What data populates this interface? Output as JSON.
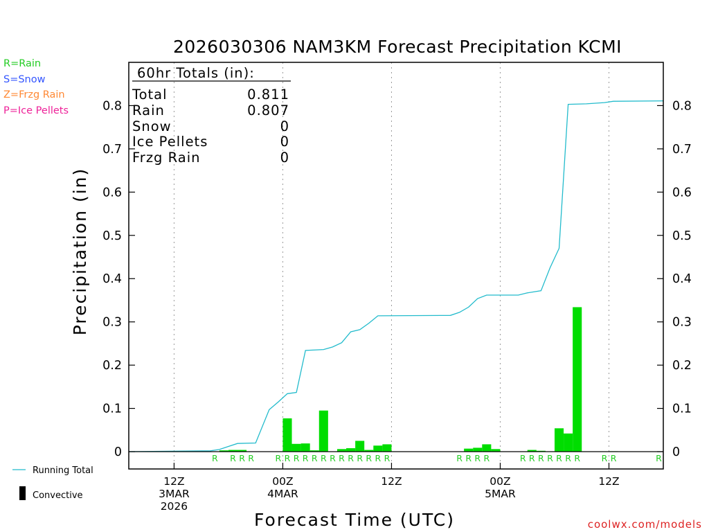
{
  "title": "2026030306 NAM3KM Forecast Precipitation KCMI",
  "legend_types": [
    {
      "text": "R=Rain",
      "color": "#22cc22"
    },
    {
      "text": "S=Snow",
      "color": "#3355ff"
    },
    {
      "text": "Z=Frzg Rain",
      "color": "#ff8833"
    },
    {
      "text": "P=Ice Pellets",
      "color": "#ee2299"
    }
  ],
  "totals_box": {
    "header": "60hr Totals (in):",
    "rows": [
      {
        "label": "Total",
        "value": "0.811"
      },
      {
        "label": "Rain",
        "value": "0.807"
      },
      {
        "label": "Snow",
        "value": "0"
      },
      {
        "label": "Ice Pellets",
        "value": "0"
      },
      {
        "label": "Frzg Rain",
        "value": "0"
      }
    ]
  },
  "bottom_legend": {
    "running_total": "Running Total",
    "convective": "Convective"
  },
  "credit": "coolwx.com/models",
  "chart_data": {
    "type": "bar",
    "title": "2026030306 NAM3KM Forecast Precipitation KCMI",
    "xlabel": "Forecast Time (UTC)",
    "ylabel": "Precipitation (in)",
    "ylim": [
      -0.04,
      0.9
    ],
    "yticks": [
      "0",
      "0.1",
      "0.2",
      "0.3",
      "0.4",
      "0.5",
      "0.6",
      "0.7",
      "0.8"
    ],
    "xrange_hours": [
      7,
      66
    ],
    "grid": "vertical dotted at 12-hour marks",
    "x_ticks": [
      {
        "hour": 12,
        "lines": [
          "12Z",
          "3MAR",
          "2026"
        ]
      },
      {
        "hour": 24,
        "lines": [
          "00Z",
          "4MAR"
        ]
      },
      {
        "hour": 36,
        "lines": [
          "12Z"
        ]
      },
      {
        "hour": 48,
        "lines": [
          "00Z",
          "5MAR"
        ]
      },
      {
        "hour": 60,
        "lines": [
          "12Z"
        ]
      }
    ],
    "series": [
      {
        "kind": "bar",
        "color": "#00dd00",
        "bars": [
          {
            "hour": 17,
            "value": 0.003
          },
          {
            "hour": 18,
            "value": 0.004
          },
          {
            "hour": 19,
            "value": 0.004
          },
          {
            "hour": 24,
            "value": 0.077
          },
          {
            "hour": 25,
            "value": 0.018
          },
          {
            "hour": 26,
            "value": 0.019
          },
          {
            "hour": 27,
            "value": 0.003
          },
          {
            "hour": 28,
            "value": 0.095
          },
          {
            "hour": 30,
            "value": 0.006
          },
          {
            "hour": 31,
            "value": 0.008
          },
          {
            "hour": 32,
            "value": 0.025
          },
          {
            "hour": 33,
            "value": 0.004
          },
          {
            "hour": 34,
            "value": 0.014
          },
          {
            "hour": 35,
            "value": 0.017
          },
          {
            "hour": 44,
            "value": 0.007
          },
          {
            "hour": 45,
            "value": 0.009
          },
          {
            "hour": 46,
            "value": 0.017
          },
          {
            "hour": 47,
            "value": 0.006
          },
          {
            "hour": 51,
            "value": 0.004
          },
          {
            "hour": 52,
            "value": 0.002
          },
          {
            "hour": 54,
            "value": 0.054
          },
          {
            "hour": 55,
            "value": 0.042
          },
          {
            "hour": 56,
            "value": 0.334
          },
          {
            "hour": 60,
            "value": 0.001
          }
        ]
      },
      {
        "kind": "line",
        "name": "Running Total",
        "color": "#22bbcc",
        "points": [
          [
            7,
            0.0
          ],
          [
            16,
            0.002
          ],
          [
            17,
            0.005
          ],
          [
            18,
            0.012
          ],
          [
            19,
            0.019
          ],
          [
            21,
            0.02
          ],
          [
            22.5,
            0.097
          ],
          [
            23.5,
            0.115
          ],
          [
            24.5,
            0.134
          ],
          [
            25.5,
            0.137
          ],
          [
            26.5,
            0.234
          ],
          [
            28.5,
            0.236
          ],
          [
            29.5,
            0.242
          ],
          [
            30.5,
            0.252
          ],
          [
            31.5,
            0.277
          ],
          [
            32.5,
            0.282
          ],
          [
            33.5,
            0.297
          ],
          [
            34.5,
            0.314
          ],
          [
            42.5,
            0.315
          ],
          [
            43.5,
            0.322
          ],
          [
            44.5,
            0.334
          ],
          [
            45.5,
            0.354
          ],
          [
            46.5,
            0.362
          ],
          [
            50,
            0.362
          ],
          [
            51,
            0.367
          ],
          [
            52.5,
            0.372
          ],
          [
            53.5,
            0.425
          ],
          [
            54.5,
            0.47
          ],
          [
            55.5,
            0.803
          ],
          [
            57.5,
            0.804
          ],
          [
            59.5,
            0.807
          ],
          [
            60.5,
            0.81
          ],
          [
            66,
            0.811
          ]
        ]
      }
    ],
    "precip_type_markers": [
      {
        "hour": 16.5,
        "text": "R"
      },
      {
        "hour": 18.5,
        "text": "R"
      },
      {
        "hour": 19.5,
        "text": "R"
      },
      {
        "hour": 20.5,
        "text": "R"
      },
      {
        "hour": 23.5,
        "text": "R"
      },
      {
        "hour": 24.5,
        "text": "R"
      },
      {
        "hour": 25.5,
        "text": "R"
      },
      {
        "hour": 26.5,
        "text": "R"
      },
      {
        "hour": 27.5,
        "text": "R"
      },
      {
        "hour": 28.5,
        "text": "R"
      },
      {
        "hour": 29.5,
        "text": "R"
      },
      {
        "hour": 30.5,
        "text": "R"
      },
      {
        "hour": 31.5,
        "text": "R"
      },
      {
        "hour": 32.5,
        "text": "R"
      },
      {
        "hour": 33.5,
        "text": "R"
      },
      {
        "hour": 34.5,
        "text": "R"
      },
      {
        "hour": 35.5,
        "text": "R"
      },
      {
        "hour": 43.5,
        "text": "R"
      },
      {
        "hour": 44.5,
        "text": "R"
      },
      {
        "hour": 45.5,
        "text": "R"
      },
      {
        "hour": 46.5,
        "text": "R"
      },
      {
        "hour": 50.5,
        "text": "R"
      },
      {
        "hour": 51.5,
        "text": "R"
      },
      {
        "hour": 52.5,
        "text": "R"
      },
      {
        "hour": 53.5,
        "text": "R"
      },
      {
        "hour": 54.5,
        "text": "R"
      },
      {
        "hour": 55.5,
        "text": "R"
      },
      {
        "hour": 56.5,
        "text": "R"
      },
      {
        "hour": 59.5,
        "text": "R"
      },
      {
        "hour": 60.5,
        "text": "R"
      },
      {
        "hour": 65.5,
        "text": "R"
      }
    ]
  }
}
